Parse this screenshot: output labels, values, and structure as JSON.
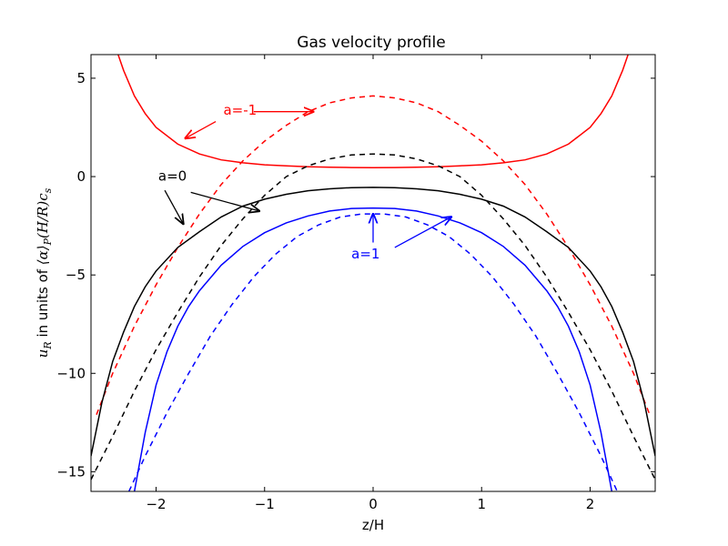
{
  "chart_data": {
    "type": "line",
    "title": "Gas velocity profile",
    "xlabel": "z/H",
    "ylabel_math": "u",
    "ylabel_math_sub": "R",
    "ylabel_text": "in units of",
    "ylabel_expr": "⟨α⟩",
    "ylabel_expr_sub": "P",
    "ylabel_expr2": "(H/R)c",
    "ylabel_expr2_sub": "s",
    "xlim": [
      -2.6,
      2.6
    ],
    "ylim": [
      -16,
      6.2
    ],
    "xticks": [
      -2,
      -1,
      0,
      1,
      2
    ],
    "yticks": [
      5,
      0,
      -5,
      -10,
      -15
    ],
    "xtick_labels": [
      "−2",
      "−1",
      "0",
      "1",
      "2"
    ],
    "ytick_labels": [
      "5",
      "0",
      "−5",
      "−10",
      "−15"
    ],
    "grid": false,
    "series": [
      {
        "a": -1,
        "style": "solid",
        "color": "#ff0000",
        "x": [
          -2.35,
          -2.3,
          -2.2,
          -2.1,
          -2.0,
          -1.8,
          -1.6,
          -1.4,
          -1.2,
          -1.0,
          -0.8,
          -0.6,
          -0.4,
          -0.2,
          0.0,
          0.2,
          0.4,
          0.6,
          0.8,
          1.0,
          1.2,
          1.4,
          1.6,
          1.8,
          2.0,
          2.1,
          2.2,
          2.3,
          2.35
        ],
        "y": [
          6.2,
          5.4,
          4.1,
          3.2,
          2.5,
          1.65,
          1.15,
          0.85,
          0.7,
          0.6,
          0.55,
          0.5,
          0.48,
          0.46,
          0.45,
          0.46,
          0.48,
          0.5,
          0.55,
          0.6,
          0.7,
          0.85,
          1.15,
          1.65,
          2.5,
          3.2,
          4.1,
          5.4,
          6.2
        ]
      },
      {
        "a": -1,
        "style": "dashed",
        "color": "#ff0000",
        "x": [
          -2.55,
          -2.4,
          -2.2,
          -2.0,
          -1.8,
          -1.6,
          -1.4,
          -1.2,
          -1.0,
          -0.8,
          -0.6,
          -0.4,
          -0.2,
          0.0,
          0.2,
          0.4,
          0.6,
          0.8,
          1.0,
          1.2,
          1.4,
          1.6,
          1.8,
          2.0,
          2.2,
          2.4,
          2.55
        ],
        "y": [
          -12.1,
          -10.0,
          -7.6,
          -5.5,
          -3.6,
          -1.9,
          -0.4,
          0.8,
          1.8,
          2.6,
          3.3,
          3.75,
          4.0,
          4.1,
          4.0,
          3.75,
          3.3,
          2.6,
          1.8,
          0.8,
          -0.4,
          -1.9,
          -3.6,
          -5.5,
          -7.6,
          -10.0,
          -12.1
        ]
      },
      {
        "a": 0,
        "style": "solid",
        "color": "#000000",
        "x": [
          -2.6,
          -2.5,
          -2.4,
          -2.3,
          -2.2,
          -2.1,
          -2.0,
          -1.8,
          -1.6,
          -1.4,
          -1.2,
          -1.0,
          -0.8,
          -0.6,
          -0.4,
          -0.2,
          0.0,
          0.2,
          0.4,
          0.6,
          0.8,
          1.0,
          1.2,
          1.4,
          1.6,
          1.8,
          2.0,
          2.1,
          2.2,
          2.3,
          2.4,
          2.5,
          2.6
        ],
        "y": [
          -14.2,
          -11.5,
          -9.4,
          -7.9,
          -6.6,
          -5.6,
          -4.8,
          -3.6,
          -2.8,
          -2.05,
          -1.5,
          -1.15,
          -0.9,
          -0.72,
          -0.62,
          -0.56,
          -0.55,
          -0.56,
          -0.62,
          -0.72,
          -0.9,
          -1.15,
          -1.5,
          -2.05,
          -2.8,
          -3.6,
          -4.8,
          -5.6,
          -6.6,
          -7.9,
          -9.4,
          -11.5,
          -14.2
        ]
      },
      {
        "a": 0,
        "style": "dashed",
        "color": "#000000",
        "x": [
          -2.6,
          -2.4,
          -2.2,
          -2.0,
          -1.8,
          -1.6,
          -1.4,
          -1.2,
          -1.0,
          -0.8,
          -0.6,
          -0.4,
          -0.2,
          0.0,
          0.2,
          0.4,
          0.6,
          0.8,
          1.0,
          1.2,
          1.4,
          1.6,
          1.8,
          2.0,
          2.2,
          2.4,
          2.6
        ],
        "y": [
          -15.4,
          -13.2,
          -10.9,
          -8.8,
          -6.9,
          -5.1,
          -3.5,
          -2.15,
          -0.95,
          0.0,
          0.55,
          0.9,
          1.1,
          1.15,
          1.1,
          0.9,
          0.55,
          0.0,
          -0.95,
          -2.15,
          -3.5,
          -5.1,
          -6.9,
          -8.8,
          -10.9,
          -13.2,
          -15.4
        ]
      },
      {
        "a": 1,
        "style": "solid",
        "color": "#0000ff",
        "x": [
          -2.2,
          -2.1,
          -2.0,
          -1.9,
          -1.8,
          -1.7,
          -1.6,
          -1.4,
          -1.2,
          -1.0,
          -0.8,
          -0.6,
          -0.4,
          -0.2,
          0.0,
          0.2,
          0.4,
          0.6,
          0.8,
          1.0,
          1.2,
          1.4,
          1.6,
          1.7,
          1.8,
          1.9,
          2.0,
          2.1,
          2.2
        ],
        "y": [
          -16.0,
          -13.0,
          -10.6,
          -8.9,
          -7.6,
          -6.6,
          -5.8,
          -4.5,
          -3.55,
          -2.85,
          -2.35,
          -2.0,
          -1.75,
          -1.62,
          -1.6,
          -1.62,
          -1.75,
          -2.0,
          -2.35,
          -2.85,
          -3.55,
          -4.5,
          -5.8,
          -6.6,
          -7.6,
          -8.9,
          -10.6,
          -13.0,
          -16.0
        ]
      },
      {
        "a": 1,
        "style": "dashed",
        "color": "#0000ff",
        "x": [
          -2.25,
          -2.1,
          -1.9,
          -1.7,
          -1.5,
          -1.3,
          -1.1,
          -0.9,
          -0.7,
          -0.5,
          -0.3,
          -0.1,
          0.0,
          0.1,
          0.3,
          0.5,
          0.7,
          0.9,
          1.1,
          1.3,
          1.5,
          1.7,
          1.9,
          2.1,
          2.25
        ],
        "y": [
          -16.0,
          -14.2,
          -12.0,
          -10.0,
          -8.1,
          -6.5,
          -5.1,
          -3.95,
          -3.05,
          -2.45,
          -2.05,
          -1.9,
          -1.9,
          -1.9,
          -2.05,
          -2.45,
          -3.05,
          -3.95,
          -5.1,
          -6.5,
          -8.1,
          -10.0,
          -12.0,
          -14.2,
          -16.0
        ]
      }
    ],
    "annotations": [
      {
        "text": "a=-1",
        "color": "#ff0000",
        "x": -1.38,
        "y": 3.15,
        "arrows": [
          {
            "from": [
              -1.1,
              3.3
            ],
            "to": [
              -0.55,
              3.3
            ]
          },
          {
            "from": [
              -1.45,
              2.8
            ],
            "to": [
              -1.73,
              1.95
            ]
          }
        ]
      },
      {
        "text": "a=0",
        "color": "#000000",
        "x": -1.98,
        "y": -0.2,
        "arrows": [
          {
            "from": [
              -1.92,
              -0.7
            ],
            "to": [
              -1.75,
              -2.4
            ]
          },
          {
            "from": [
              -1.68,
              -0.8
            ],
            "to": [
              -1.05,
              -1.75
            ]
          }
        ]
      },
      {
        "text": "a=1",
        "color": "#0000ff",
        "x": -0.2,
        "y": -4.15,
        "arrows": [
          {
            "from": [
              0.0,
              -3.35
            ],
            "to": [
              0.0,
              -1.9
            ]
          },
          {
            "from": [
              0.2,
              -3.6
            ],
            "to": [
              0.72,
              -2.05
            ]
          }
        ]
      }
    ]
  }
}
